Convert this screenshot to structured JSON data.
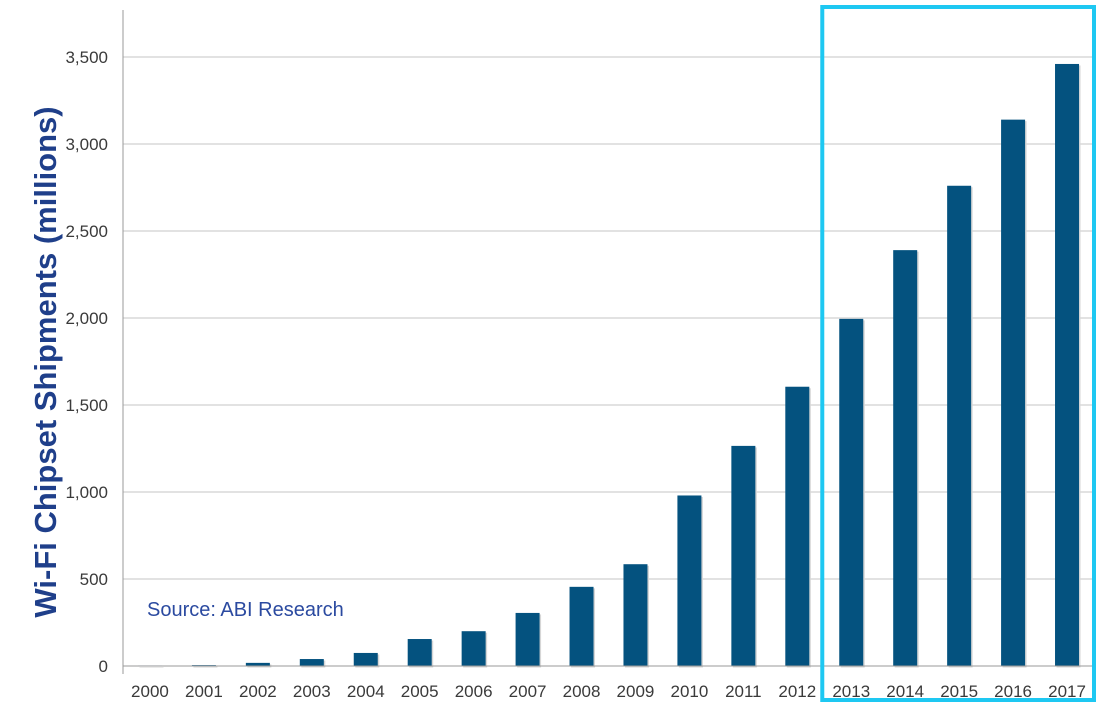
{
  "chart_data": {
    "type": "bar",
    "title": "",
    "xlabel": "",
    "ylabel": "Wi-Fi Chipset Shipments (millions)",
    "ylim": [
      0,
      3750
    ],
    "grid": true,
    "yticks": [
      "0",
      "500",
      "1,000",
      "1,500",
      "2,000",
      "2,500",
      "3,000",
      "3,500"
    ],
    "categories": [
      "2000",
      "2001",
      "2002",
      "2003",
      "2004",
      "2005",
      "2006",
      "2007",
      "2008",
      "2009",
      "2010",
      "2011",
      "2012",
      "2013",
      "2014",
      "2015",
      "2016",
      "2017"
    ],
    "values": [
      3,
      5,
      18,
      40,
      75,
      155,
      200,
      305,
      455,
      585,
      980,
      1265,
      1605,
      1995,
      2390,
      2760,
      3140,
      3460
    ],
    "annotation": "Source: ABI Research",
    "highlight": {
      "from": "2013",
      "to": "2017"
    },
    "colors": {
      "bar": "#04527f",
      "highlight": "#1ec8f2",
      "grid": "#c4c4c4",
      "ylabel": "#1f3f8a",
      "source": "#2b4aa0"
    }
  }
}
